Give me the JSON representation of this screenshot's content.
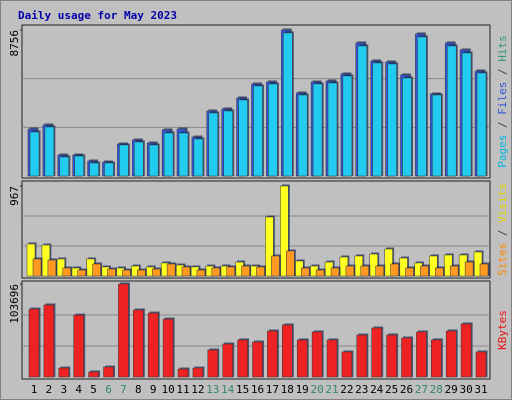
{
  "chart_data": {
    "type": "bar",
    "title": "Daily usage for May 2023",
    "categories": [
      "1",
      "2",
      "3",
      "4",
      "5",
      "6",
      "7",
      "8",
      "9",
      "10",
      "11",
      "12",
      "13",
      "14",
      "15",
      "16",
      "17",
      "18",
      "19",
      "20",
      "21",
      "22",
      "23",
      "24",
      "25",
      "26",
      "27",
      "28",
      "29",
      "30",
      "31"
    ],
    "category_colors": [
      "#000000",
      "#000000",
      "#000000",
      "#000000",
      "#000000",
      "#338866",
      "#338866",
      "#000000",
      "#000000",
      "#000000",
      "#000000",
      "#000000",
      "#338866",
      "#338866",
      "#000000",
      "#000000",
      "#000000",
      "#000000",
      "#000000",
      "#338866",
      "#338866",
      "#000000",
      "#000000",
      "#000000",
      "#000000",
      "#000000",
      "#338866",
      "#338866",
      "#000000",
      "#000000",
      "#000000"
    ],
    "grid": true,
    "panels": [
      {
        "ylim": [
          0,
          8756
        ],
        "yticks": [
          8756
        ],
        "legend": [
          {
            "text": "Pages",
            "color": "#00b8e8"
          },
          {
            "text": " / ",
            "color": "#444444"
          },
          {
            "text": "Files",
            "color": "#3355dd"
          },
          {
            "text": " / ",
            "color": "#444444"
          },
          {
            "text": "Hits",
            "color": "#339977"
          }
        ],
        "series": [
          {
            "name": "Files",
            "color": "#3355dd",
            "values": [
              2820,
              3060,
              1260,
              1260,
              900,
              840,
              1920,
              2160,
              1980,
              2760,
              2820,
              2340,
              3900,
              4020,
              4680,
              5520,
              5640,
              8756,
              4980,
              5640,
              5700,
              6120,
              7980,
              6900,
              6840,
              6060,
              8520,
              4920,
              7980,
              7560,
              6300
            ]
          },
          {
            "name": "Pages",
            "color": "#22ccf0",
            "values": [
              2640,
              2940,
              1140,
              1200,
              780,
              780,
              1860,
              2040,
              1860,
              2580,
              2580,
              2220,
              3780,
              3900,
              4560,
              5400,
              5520,
              8580,
              4860,
              5520,
              5580,
              6000,
              7800,
              6780,
              6720,
              5880,
              8340,
              4860,
              7800,
              7380,
              6180
            ]
          }
        ]
      },
      {
        "ylim": [
          0,
          967
        ],
        "yticks": [
          967
        ],
        "legend": [
          {
            "text": "Sites",
            "color": "#ff8800"
          },
          {
            "text": " / ",
            "color": "#444444"
          },
          {
            "text": "Visits",
            "color": "#e0d000"
          }
        ],
        "series": [
          {
            "name": "Visits",
            "color": "#ffff22",
            "values": [
              344,
              333,
              183,
              86,
              183,
              97,
              86,
              107,
              97,
              140,
              118,
              97,
              107,
              107,
              150,
              107,
              634,
              967,
              161,
              107,
              150,
              204,
              215,
              236,
              290,
              193,
              140,
              215,
              226,
              226,
              258
            ]
          },
          {
            "name": "Sites",
            "color": "#ff9922",
            "values": [
              183,
              172,
              86,
              64,
              129,
              75,
              64,
              64,
              75,
              129,
              97,
              64,
              86,
              97,
              107,
              97,
              215,
              269,
              86,
              64,
              86,
              107,
              107,
              107,
              129,
              86,
              107,
              86,
              107,
              150,
              129
            ]
          }
        ]
      },
      {
        "ylim": [
          0,
          103696
        ],
        "yticks": [
          103696
        ],
        "legend": [
          {
            "text": "KBytes",
            "color": "#ee1111"
          }
        ],
        "series": [
          {
            "name": "KBytes",
            "color": "#ee2222",
            "values": [
              75800,
              80300,
              10000,
              69000,
              5600,
              11100,
              103696,
              74700,
              71300,
              64600,
              8900,
              10000,
              30100,
              36800,
              41300,
              39000,
              51300,
              58000,
              41300,
              50200,
              41300,
              27900,
              46800,
              54600,
              46800,
              43500,
              50200,
              41300,
              51300,
              59100,
              27900
            ]
          }
        ]
      }
    ]
  }
}
